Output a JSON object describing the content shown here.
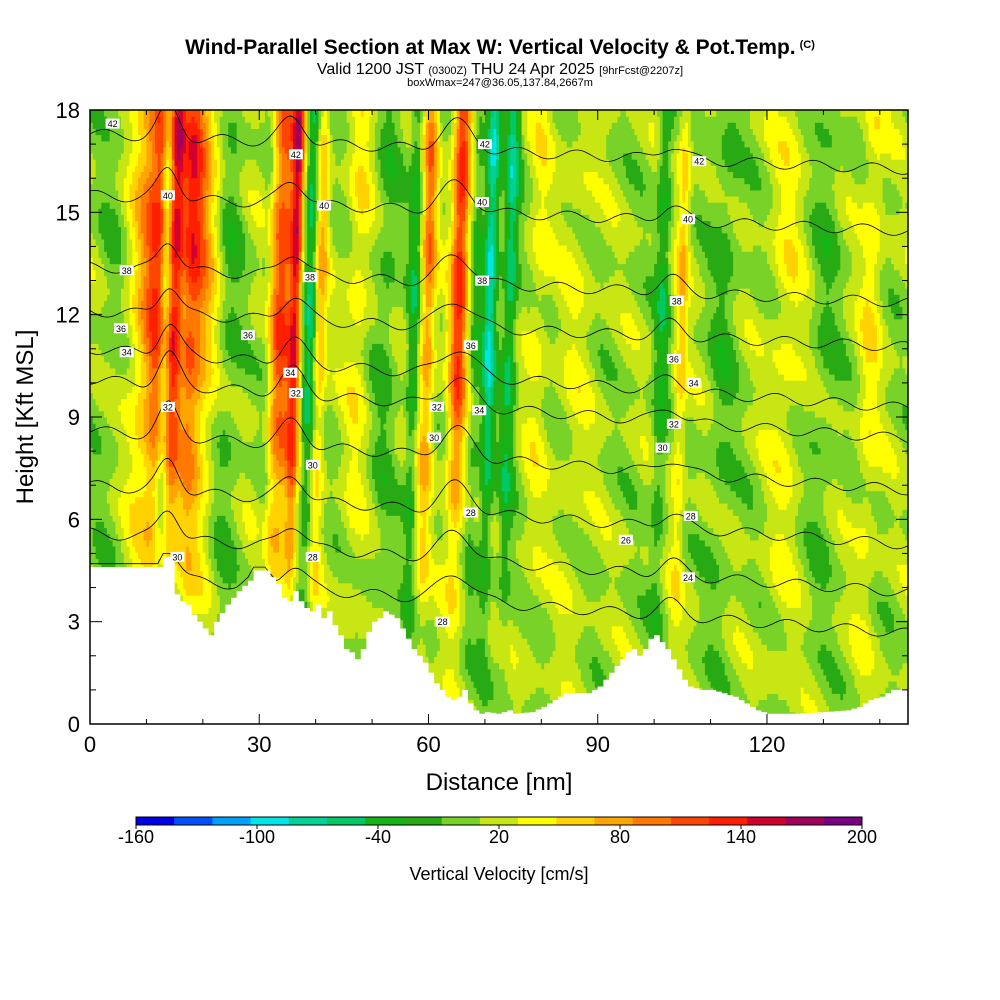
{
  "header": {
    "title": "Wind-Parallel Section at Max W: Vertical Velocity & Pot.Temp.",
    "title_units": "(C)",
    "valid_prefix": "Valid 1200 JST",
    "valid_utc": "(0300Z)",
    "valid_date": "THU 24 Apr 2025",
    "forecast": "[9hrFcst@2207z]",
    "box_info": "boxWmax=247@36.05,137.84,2667m"
  },
  "chart_data": {
    "type": "heatmap",
    "xlabel": "Distance [nm]",
    "ylabel": "Height [Kft MSL]",
    "xlim": [
      0,
      145
    ],
    "ylim": [
      0,
      18
    ],
    "x_ticks": [
      "0",
      "30",
      "60",
      "90",
      "120"
    ],
    "y_ticks": [
      "0",
      "3",
      "6",
      "9",
      "12",
      "15",
      "18"
    ],
    "colorbar": {
      "label": "Vertical Velocity [cm/s]",
      "tick_labels": [
        "-160",
        "-100",
        "-40",
        "20",
        "80",
        "140",
        "200"
      ],
      "bounds": [
        -160,
        200
      ],
      "step": 20,
      "colors": [
        "#0000e6",
        "#0050ff",
        "#00a0ff",
        "#00e6e6",
        "#00d296",
        "#00c864",
        "#14b414",
        "#28aa14",
        "#78d228",
        "#c8e614",
        "#ffff00",
        "#ffd200",
        "#ffa500",
        "#ff7800",
        "#ff4600",
        "#ff1e00",
        "#d2002d",
        "#a0005a",
        "#780082"
      ]
    },
    "theta_contour_labels": [
      {
        "text": "42",
        "x": 4,
        "y": 17.6
      },
      {
        "text": "42",
        "x": 36.5,
        "y": 16.7
      },
      {
        "text": "42",
        "x": 70,
        "y": 17
      },
      {
        "text": "42",
        "x": 108,
        "y": 16.5
      },
      {
        "text": "40",
        "x": 13.8,
        "y": 15.5
      },
      {
        "text": "40",
        "x": 41.5,
        "y": 15.2
      },
      {
        "text": "40",
        "x": 69.5,
        "y": 15.3
      },
      {
        "text": "40",
        "x": 106,
        "y": 14.8
      },
      {
        "text": "38",
        "x": 6.5,
        "y": 13.3
      },
      {
        "text": "38",
        "x": 39,
        "y": 13.1
      },
      {
        "text": "38",
        "x": 69.5,
        "y": 13
      },
      {
        "text": "38",
        "x": 104,
        "y": 12.4
      },
      {
        "text": "36",
        "x": 5.5,
        "y": 11.6
      },
      {
        "text": "36",
        "x": 28,
        "y": 11.4
      },
      {
        "text": "36",
        "x": 67.5,
        "y": 11.1
      },
      {
        "text": "36",
        "x": 103.5,
        "y": 10.7
      },
      {
        "text": "34",
        "x": 6.5,
        "y": 10.9
      },
      {
        "text": "34",
        "x": 35.5,
        "y": 10.3
      },
      {
        "text": "34",
        "x": 69,
        "y": 9.2
      },
      {
        "text": "34",
        "x": 107,
        "y": 10
      },
      {
        "text": "32",
        "x": 13.8,
        "y": 9.3
      },
      {
        "text": "32",
        "x": 36.5,
        "y": 9.7
      },
      {
        "text": "32",
        "x": 61.5,
        "y": 9.3
      },
      {
        "text": "32",
        "x": 103.5,
        "y": 8.8
      },
      {
        "text": "30",
        "x": 39.5,
        "y": 7.6
      },
      {
        "text": "30",
        "x": 61,
        "y": 8.4
      },
      {
        "text": "30",
        "x": 101.5,
        "y": 8.1
      },
      {
        "text": "30",
        "x": 15.5,
        "y": 4.9
      },
      {
        "text": "28",
        "x": 67.5,
        "y": 6.2
      },
      {
        "text": "28",
        "x": 106.5,
        "y": 6.1
      },
      {
        "text": "28",
        "x": 39.5,
        "y": 4.9
      },
      {
        "text": "28",
        "x": 62.5,
        "y": 3
      },
      {
        "text": "26",
        "x": 95,
        "y": 5.4
      },
      {
        "text": "24",
        "x": 106,
        "y": 4.3
      }
    ]
  }
}
